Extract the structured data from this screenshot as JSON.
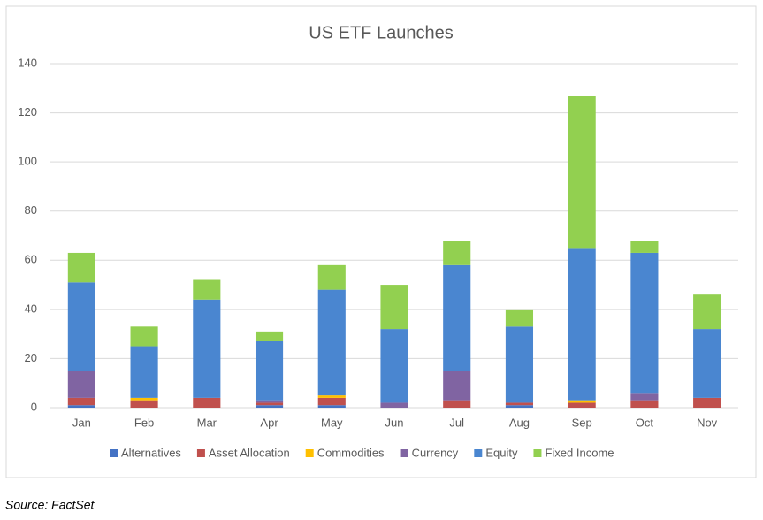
{
  "chart_data": {
    "type": "stacked-bar",
    "title": "US ETF Launches",
    "categories": [
      "Jan",
      "Feb",
      "Mar",
      "Apr",
      "May",
      "Jun",
      "Jul",
      "Aug",
      "Sep",
      "Oct",
      "Nov"
    ],
    "series": [
      {
        "name": "Alternatives",
        "color": "#4472c4",
        "values": [
          1,
          0,
          0,
          1,
          1,
          0,
          0,
          1,
          0,
          0,
          0
        ]
      },
      {
        "name": "Asset Allocation",
        "color": "#c0504d",
        "values": [
          3,
          3,
          4,
          1,
          3,
          0,
          3,
          1,
          2,
          3,
          4
        ]
      },
      {
        "name": "Commodities",
        "color": "#ffc000",
        "values": [
          0,
          1,
          0,
          0,
          1,
          0,
          0,
          0,
          1,
          0,
          0
        ]
      },
      {
        "name": "Currency",
        "color": "#8064a2",
        "values": [
          11,
          0,
          0,
          1,
          0,
          2,
          12,
          0,
          0,
          3,
          0
        ]
      },
      {
        "name": "Equity",
        "color": "#4a86d0",
        "values": [
          36,
          21,
          40,
          24,
          43,
          30,
          43,
          31,
          62,
          57,
          28
        ]
      },
      {
        "name": "Fixed Income",
        "color": "#92d050",
        "values": [
          12,
          8,
          8,
          4,
          10,
          18,
          10,
          7,
          62,
          5,
          14
        ]
      }
    ],
    "ylim": [
      0,
      140
    ],
    "yticks": [
      0,
      20,
      40,
      60,
      80,
      100,
      120,
      140
    ],
    "grid": true,
    "legend": "bottom"
  },
  "source": "Source: FactSet"
}
